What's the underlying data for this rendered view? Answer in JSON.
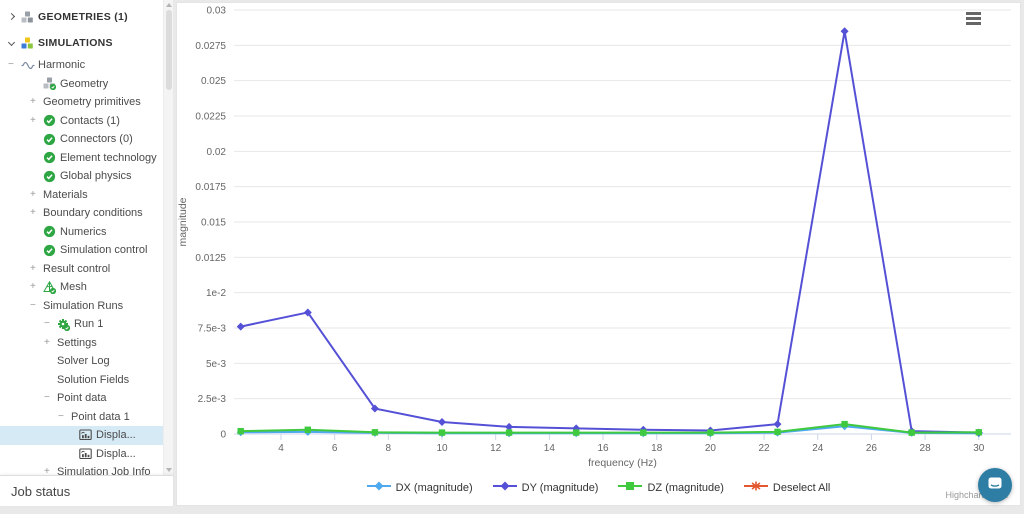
{
  "sidebar": {
    "items": [
      {
        "label": "GEOMETRIES (1)",
        "level": 0,
        "header": true,
        "expander": "chevron-right",
        "icon": "geometries-cubes-icon"
      },
      {
        "label": "SIMULATIONS",
        "level": 0,
        "header": true,
        "expander": "chevron-down",
        "icon": "simulations-cubes-icon"
      },
      {
        "label": "Harmonic",
        "level": 1,
        "expander": "minus",
        "icon": "waveform-icon"
      },
      {
        "label": "Geometry",
        "level": 2,
        "expander": null,
        "icon": "geometry-check-icon"
      },
      {
        "label": "Geometry primitives",
        "level": 2,
        "expander": "plus",
        "icon": null
      },
      {
        "label": "Contacts (1)",
        "level": 2,
        "expander": "plus",
        "icon": "check-icon"
      },
      {
        "label": "Connectors (0)",
        "level": 2,
        "expander": null,
        "icon": "check-icon"
      },
      {
        "label": "Element technology",
        "level": 2,
        "expander": null,
        "icon": "check-icon"
      },
      {
        "label": "Global physics",
        "level": 2,
        "expander": null,
        "icon": "check-icon"
      },
      {
        "label": "Materials",
        "level": 2,
        "expander": "plus",
        "icon": null
      },
      {
        "label": "Boundary conditions",
        "level": 2,
        "expander": "plus",
        "icon": null
      },
      {
        "label": "Numerics",
        "level": 2,
        "expander": null,
        "icon": "check-icon"
      },
      {
        "label": "Simulation control",
        "level": 2,
        "expander": null,
        "icon": "check-icon"
      },
      {
        "label": "Result control",
        "level": 2,
        "expander": "plus",
        "icon": null
      },
      {
        "label": "Mesh",
        "level": 2,
        "expander": "plus",
        "icon": "mesh-icon"
      },
      {
        "label": "Simulation Runs",
        "level": 2,
        "expander": "minus",
        "icon": null
      },
      {
        "label": "Run 1",
        "level": 3,
        "expander": "minus",
        "icon": "gear-icon"
      },
      {
        "label": "Settings",
        "level": 4,
        "expander": "plus",
        "icon": null
      },
      {
        "label": "Solver Log",
        "level": 4,
        "expander": null,
        "icon": null
      },
      {
        "label": "Solution Fields",
        "level": 4,
        "expander": null,
        "icon": null
      },
      {
        "label": "Point data",
        "level": 4,
        "expander": "minus",
        "icon": null
      },
      {
        "label": "Point data 1",
        "level": 5,
        "expander": "minus",
        "icon": null
      },
      {
        "label": "Displa...",
        "level": 6,
        "expander": null,
        "icon": "chart-icon",
        "selected": true
      },
      {
        "label": "Displa...",
        "level": 6,
        "expander": null,
        "icon": "chart-icon"
      },
      {
        "label": "Simulation Job Info",
        "level": 4,
        "expander": "plus",
        "icon": null
      }
    ],
    "job_status_label": "Job status"
  },
  "chart_data": {
    "type": "line",
    "title": "",
    "xlabel": "frequency (Hz)",
    "ylabel": "magnitude",
    "x_range": [
      2.25,
      31.2
    ],
    "y_range": [
      0,
      0.03
    ],
    "grid": "horizontal",
    "legend_position": "bottom",
    "x_ticks": [
      4,
      6,
      8,
      10,
      12,
      14,
      16,
      18,
      20,
      22,
      24,
      26,
      28,
      30
    ],
    "y_ticks": [
      {
        "value": 0,
        "label": "0"
      },
      {
        "value": 0.0025,
        "label": "2.5e-3"
      },
      {
        "value": 0.005,
        "label": "5e-3"
      },
      {
        "value": 0.0075,
        "label": "7.5e-3"
      },
      {
        "value": 0.01,
        "label": "1e-2"
      },
      {
        "value": 0.0125,
        "label": "0.0125"
      },
      {
        "value": 0.015,
        "label": "0.015"
      },
      {
        "value": 0.0175,
        "label": "0.0175"
      },
      {
        "value": 0.02,
        "label": "0.02"
      },
      {
        "value": 0.0225,
        "label": "0.0225"
      },
      {
        "value": 0.025,
        "label": "0.025"
      },
      {
        "value": 0.0275,
        "label": "0.0275"
      },
      {
        "value": 0.03,
        "label": "0.03"
      }
    ],
    "x": [
      2.5,
      5,
      7.5,
      10,
      12.5,
      15,
      17.5,
      20,
      22.5,
      25,
      27.5,
      30
    ],
    "series": [
      {
        "name": "DX (magnitude)",
        "color": "#4FA9EE",
        "marker": "diamond",
        "values": [
          0.00012,
          0.00015,
          8e-05,
          5e-05,
          5e-05,
          5e-05,
          5e-05,
          5e-05,
          0.0001,
          0.00055,
          8e-05,
          5e-05
        ]
      },
      {
        "name": "DY (magnitude)",
        "color": "#5551D6",
        "marker": "diamond",
        "values": [
          0.0076,
          0.0086,
          0.0018,
          0.00085,
          0.0005,
          0.0004,
          0.0003,
          0.00025,
          0.0007,
          0.0285,
          0.0002,
          0.0001
        ]
      },
      {
        "name": "DZ (magnitude)",
        "color": "#3FC93F",
        "marker": "square",
        "values": [
          0.0002,
          0.0003,
          0.00012,
          0.0001,
          0.0001,
          0.0001,
          0.0001,
          0.0001,
          0.00015,
          0.0007,
          0.0001,
          0.00012
        ]
      }
    ],
    "legend_extra": [
      {
        "label": "Deselect All",
        "color": "#E2572F",
        "marker": "star"
      }
    ],
    "credit": "Highcharts.com"
  }
}
